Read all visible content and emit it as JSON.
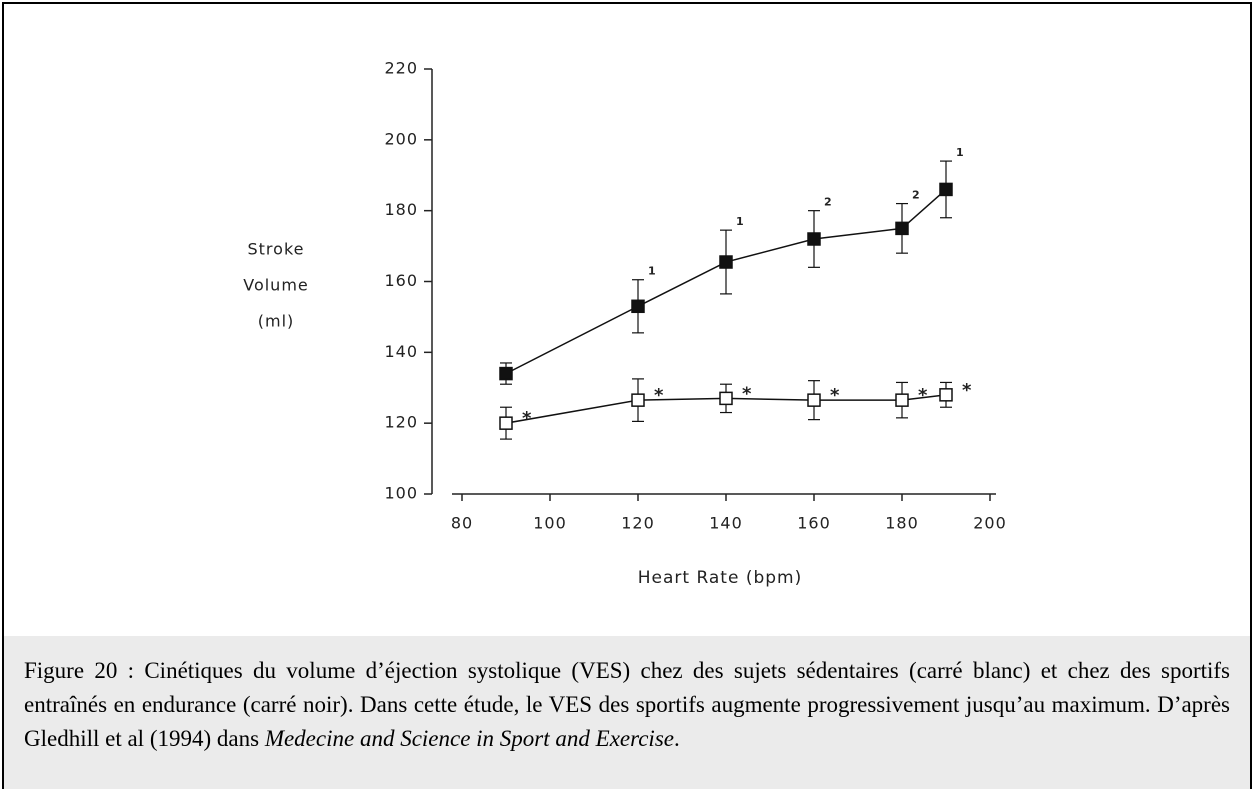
{
  "chart_data": {
    "type": "line",
    "y_label": [
      "Stroke",
      "Volume",
      "(ml)"
    ],
    "x_label": "Heart Rate (bpm)",
    "x": [
      90,
      120,
      140,
      160,
      180,
      190
    ],
    "series": [
      {
        "color": "#111111",
        "marker_fill": "#111111",
        "values": [
          134,
          153,
          165.5,
          172,
          175,
          186
        ],
        "errors": [
          3,
          7.5,
          9,
          8,
          7,
          8
        ],
        "point_labels": [
          null,
          "1",
          "1",
          "2",
          "2",
          "1"
        ]
      },
      {
        "color": "#111111",
        "marker_fill": "#ffffff",
        "values": [
          120,
          126.5,
          127,
          126.5,
          126.5,
          128
        ],
        "errors": [
          4.5,
          6,
          4,
          5.5,
          5,
          3.5
        ],
        "point_labels": [
          "*",
          "*",
          "*",
          "*",
          "*",
          "*"
        ]
      }
    ],
    "xlim": [
      80,
      200
    ],
    "xticks": [
      80,
      100,
      120,
      140,
      160,
      180,
      200
    ],
    "ylim": [
      100,
      220
    ],
    "yticks": [
      100,
      120,
      140,
      160,
      180,
      200,
      220
    ],
    "grid": false
  },
  "caption": [
    "Figure 20 : Cinétiques du volume d’éjection systolique (VES) chez des sujets sédentaires (carré blanc) et chez des sportifs entraînés en endurance (carré noir). Dans cette étude, le VES des sportifs augmente progressivement jusqu’au maximum. D’après Gledhill et al (1994) dans ",
    "Medecine and Science in Sport and Exercise",
    "."
  ]
}
